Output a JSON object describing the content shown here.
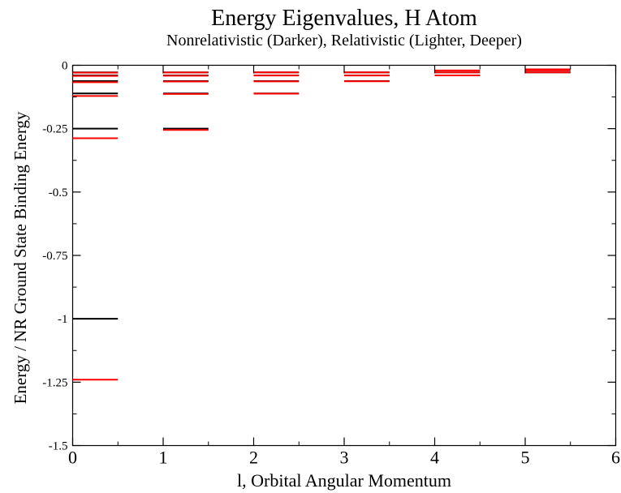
{
  "chart_data": {
    "type": "scatter",
    "title": "Energy Eigenvalues, H Atom",
    "subtitle": "Nonrelativistic (Darker), Relativistic (Lighter, Deeper)",
    "xlabel": "l, Orbital Angular Momentum",
    "ylabel": "Energy /  NR Ground State Binding Energy",
    "xlim": [
      0,
      6
    ],
    "ylim": [
      -1.5,
      0
    ],
    "x_ticks": [
      0,
      1,
      2,
      3,
      4,
      5,
      6
    ],
    "x_tick_labels": [
      "0",
      "1",
      "2",
      "3",
      "4",
      "5",
      "6"
    ],
    "y_ticks": [
      -1.5,
      -1.25,
      -1,
      -0.75,
      -0.5,
      -0.25,
      0
    ],
    "y_tick_labels": [
      "-1.5",
      "-1.25",
      "-1",
      "-0.75",
      "-0.5",
      "-0.25",
      "0"
    ],
    "grid": false,
    "level_width": 0.5,
    "series": [
      {
        "color": "#000000",
        "points": [
          {
            "l": 0,
            "values": [
              -1.0,
              -0.25,
              -0.111,
              -0.0625,
              -0.04,
              -0.0278
            ]
          },
          {
            "l": 1,
            "values": [
              -0.25,
              -0.111,
              -0.0625,
              -0.04,
              -0.0278
            ]
          },
          {
            "l": 2,
            "values": [
              -0.111,
              -0.0625,
              -0.04,
              -0.0278
            ]
          },
          {
            "l": 3,
            "values": [
              -0.0625,
              -0.04,
              -0.0278
            ]
          },
          {
            "l": 4,
            "values": [
              -0.04,
              -0.0278
            ]
          },
          {
            "l": 5,
            "values": [
              -0.0278
            ]
          }
        ]
      },
      {
        "color": "#ff0000",
        "points": [
          {
            "l": 0,
            "values": [
              -1.24,
              -0.288,
              -0.121,
              -0.0667,
              -0.042,
              -0.029
            ]
          },
          {
            "l": 1,
            "values": [
              -0.255,
              -0.113,
              -0.064,
              -0.041,
              -0.0285
            ]
          },
          {
            "l": 2,
            "values": [
              -0.112,
              -0.0635,
              -0.0405,
              -0.028
            ]
          },
          {
            "l": 3,
            "values": [
              -0.063,
              -0.0402,
              -0.0279
            ]
          },
          {
            "l": 4,
            "values": [
              -0.0401,
              -0.0278,
              -0.0205
            ]
          },
          {
            "l": 5,
            "values": [
              -0.0279,
              -0.0205,
              -0.016
            ]
          }
        ]
      }
    ]
  }
}
